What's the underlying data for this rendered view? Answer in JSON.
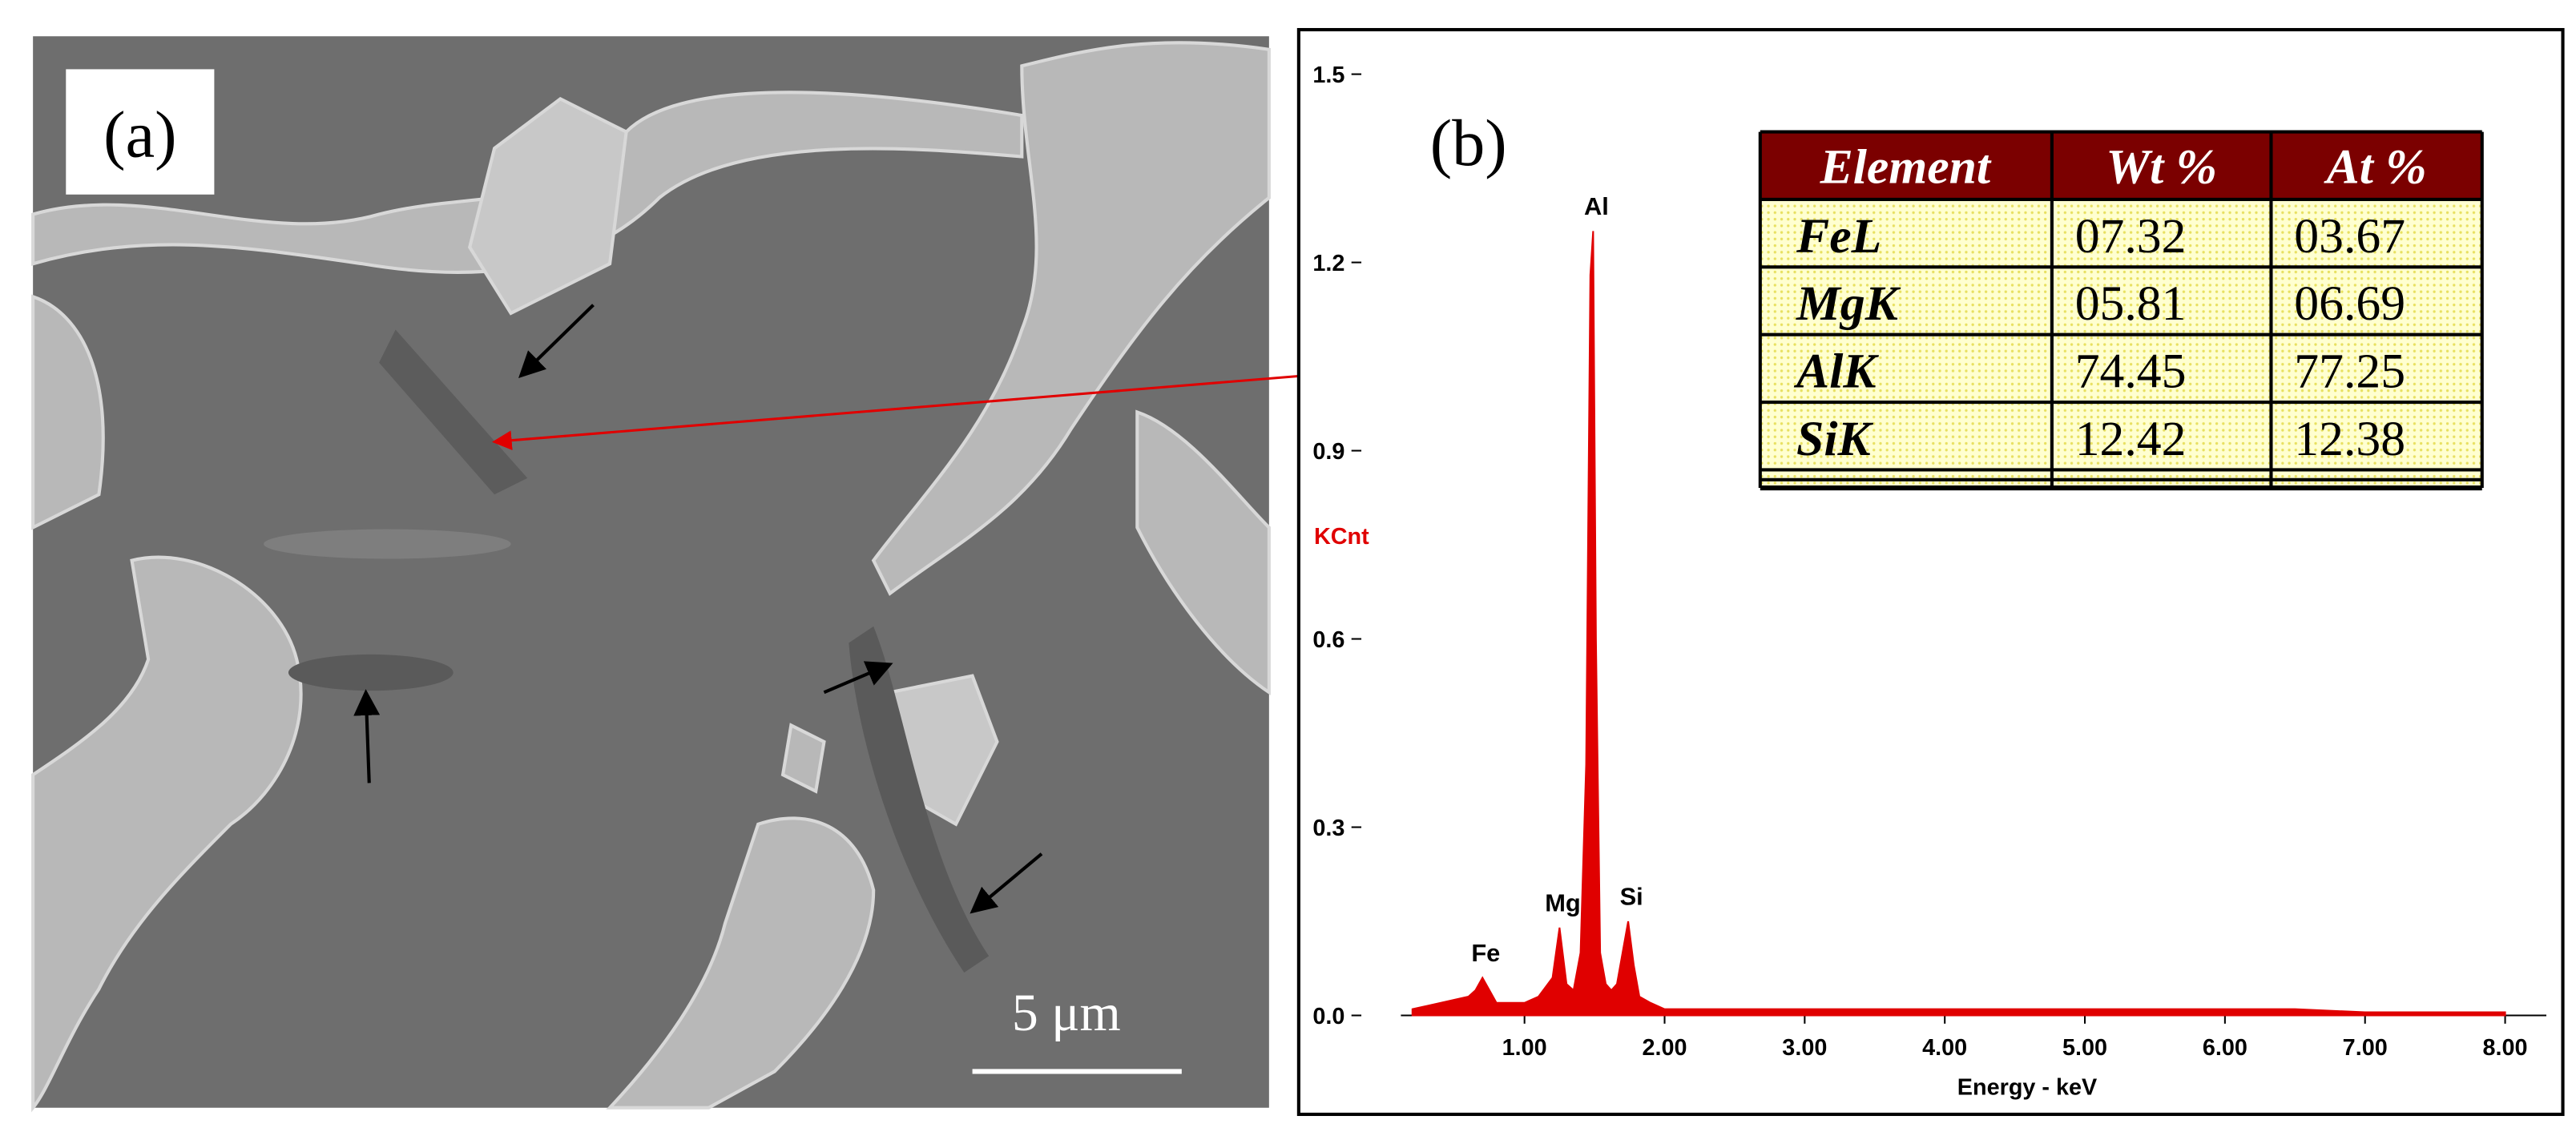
{
  "panel_a": {
    "label": "(a)",
    "scale_bar": "5 μm"
  },
  "panel_b_label": "(b)",
  "chart_data": {
    "type": "area",
    "color": "#e00000",
    "xlabel": "Energy - keV",
    "ylabel": "KCnt",
    "x": [
      0.2,
      0.4,
      0.6,
      0.65,
      0.7,
      0.75,
      0.8,
      0.9,
      1.0,
      1.1,
      1.2,
      1.25,
      1.3,
      1.35,
      1.4,
      1.44,
      1.47,
      1.49,
      1.51,
      1.54,
      1.58,
      1.62,
      1.66,
      1.7,
      1.74,
      1.78,
      1.82,
      1.9,
      2.0,
      2.5,
      3.0,
      3.5,
      4.0,
      4.5,
      5.0,
      5.5,
      6.0,
      6.5,
      7.0,
      7.5,
      8.0
    ],
    "values": [
      0.01,
      0.02,
      0.03,
      0.04,
      0.06,
      0.04,
      0.02,
      0.02,
      0.02,
      0.03,
      0.06,
      0.14,
      0.05,
      0.04,
      0.1,
      0.4,
      1.18,
      1.25,
      0.6,
      0.1,
      0.05,
      0.04,
      0.05,
      0.1,
      0.15,
      0.08,
      0.03,
      0.02,
      0.01,
      0.01,
      0.01,
      0.01,
      0.01,
      0.01,
      0.01,
      0.01,
      0.01,
      0.01,
      0.005,
      0.005,
      0.005
    ],
    "xlim": [
      0,
      8.15
    ],
    "ylim": [
      0,
      1.5
    ],
    "xticks": [
      {
        "value": 1,
        "label": "1.00"
      },
      {
        "value": 2,
        "label": "2.00"
      },
      {
        "value": 3,
        "label": "3.00"
      },
      {
        "value": 4,
        "label": "4.00"
      },
      {
        "value": 5,
        "label": "5.00"
      },
      {
        "value": 6,
        "label": "6.00"
      },
      {
        "value": 7,
        "label": "7.00"
      },
      {
        "value": 8,
        "label": "8.00"
      }
    ],
    "yticks": [
      {
        "value": 0,
        "label": "0.0"
      },
      {
        "value": 0.3,
        "label": "0.3"
      },
      {
        "value": 0.6,
        "label": "0.6"
      },
      {
        "value": 0.9,
        "label": "0.9"
      },
      {
        "value": 1.2,
        "label": "1.2"
      },
      {
        "value": 1.5,
        "label": "1.5"
      }
    ],
    "annotations": [
      {
        "text": "Fe",
        "x": 0.7,
        "y": 0.06
      },
      {
        "text": "Mg",
        "x": 1.25,
        "y": 0.14
      },
      {
        "text": "Al",
        "x": 1.49,
        "y": 1.25
      },
      {
        "text": "Si",
        "x": 1.74,
        "y": 0.15
      }
    ]
  },
  "table": {
    "columns": [
      "Element",
      "Wt %",
      "At %"
    ],
    "rows": [
      [
        "FeL",
        "07.32",
        "03.67"
      ],
      [
        "MgK",
        "05.81",
        "06.69"
      ],
      [
        "AlK",
        "74.45",
        "77.25"
      ],
      [
        "SiK",
        "12.42",
        "12.38"
      ]
    ]
  }
}
